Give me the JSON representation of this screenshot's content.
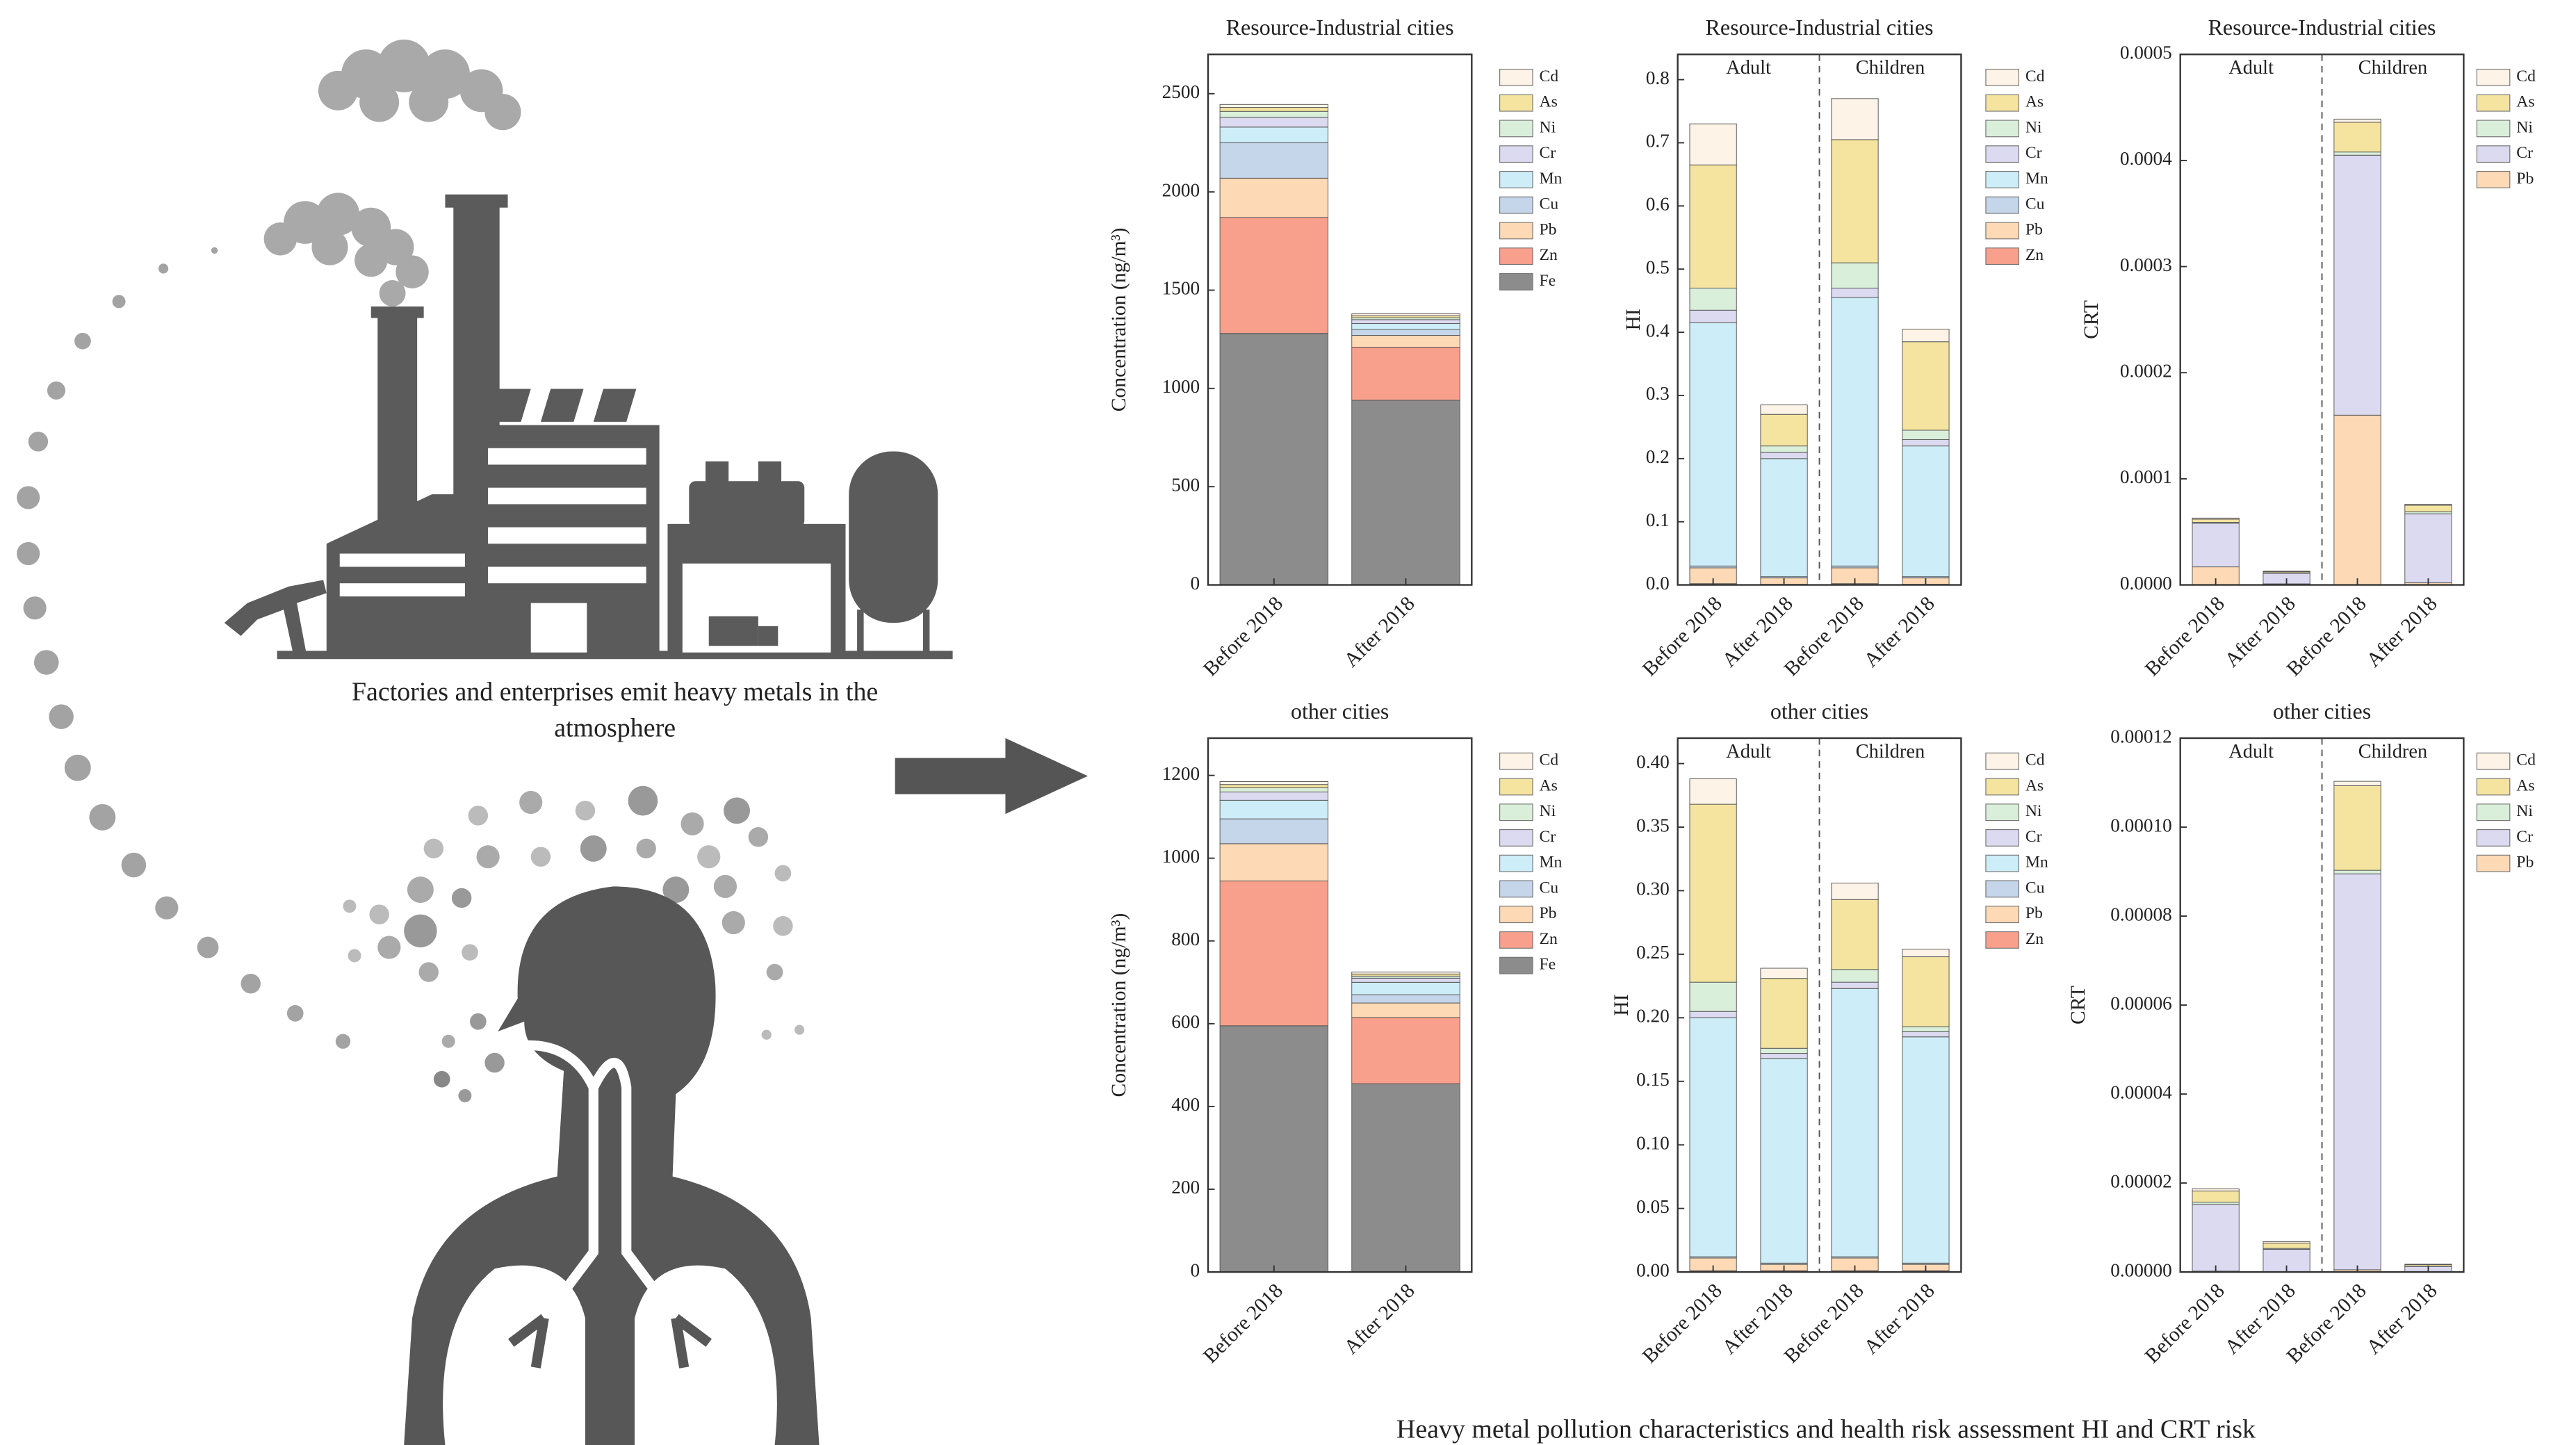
{
  "illustration_caption": "Factories and enterprises emit heavy metals in the atmosphere",
  "caption": "Heavy metal pollution characteristics and health risk assessment HI and CRT risk",
  "chart_data": [
    {
      "type": "bar",
      "stacked": true,
      "title": "Resource-Industrial cities",
      "ylabel": "Concentration (ng/m³)",
      "categories": [
        "Before 2018",
        "After 2018"
      ],
      "ylim": [
        0,
        2700
      ],
      "yticks": [
        0,
        500,
        1000,
        1500,
        2000,
        2500
      ],
      "grid": false,
      "legend": "right",
      "series": [
        {
          "name": "Fe",
          "color": "#8c8c8c",
          "values": [
            1280,
            940
          ]
        },
        {
          "name": "Zn",
          "color": "#f9a08c",
          "values": [
            590,
            270
          ]
        },
        {
          "name": "Pb",
          "color": "#fdd9b5",
          "values": [
            200,
            60
          ]
        },
        {
          "name": "Cu",
          "color": "#c5d5ea",
          "values": [
            180,
            30
          ]
        },
        {
          "name": "Mn",
          "color": "#cdeef8",
          "values": [
            80,
            30
          ]
        },
        {
          "name": "Cr",
          "color": "#dcdaf0",
          "values": [
            50,
            20
          ]
        },
        {
          "name": "Ni",
          "color": "#d9efd9",
          "values": [
            30,
            10
          ]
        },
        {
          "name": "As",
          "color": "#f5e4a0",
          "values": [
            20,
            10
          ]
        },
        {
          "name": "Cd",
          "color": "#fdf3e7",
          "values": [
            15,
            10
          ]
        }
      ]
    },
    {
      "type": "bar",
      "stacked": true,
      "title": "Resource-Industrial cities",
      "ylabel": "HI",
      "group_labels": [
        "Adult",
        "Children"
      ],
      "categories": [
        "Before 2018",
        "After 2018",
        "Before 2018",
        "After 2018"
      ],
      "ylim": [
        0,
        0.84
      ],
      "yticks": [
        {
          "value": 0,
          "label": "0.0"
        },
        0.1,
        0.2,
        0.3,
        0.4,
        0.5,
        0.6,
        0.7,
        0.8
      ],
      "grid": false,
      "legend": "right",
      "series": [
        {
          "name": "Zn",
          "color": "#f9a08c",
          "values": [
            0.002,
            0.001,
            0.002,
            0.001
          ]
        },
        {
          "name": "Pb",
          "color": "#fdd9b5",
          "values": [
            0.025,
            0.01,
            0.025,
            0.01
          ]
        },
        {
          "name": "Cu",
          "color": "#c5d5ea",
          "values": [
            0.003,
            0.002,
            0.003,
            0.002
          ]
        },
        {
          "name": "Mn",
          "color": "#cdeef8",
          "values": [
            0.385,
            0.187,
            0.425,
            0.207
          ]
        },
        {
          "name": "Cr",
          "color": "#dcdaf0",
          "values": [
            0.02,
            0.01,
            0.015,
            0.01
          ]
        },
        {
          "name": "Ni",
          "color": "#d9efd9",
          "values": [
            0.035,
            0.01,
            0.04,
            0.015
          ]
        },
        {
          "name": "As",
          "color": "#f5e4a0",
          "values": [
            0.195,
            0.05,
            0.195,
            0.14
          ]
        },
        {
          "name": "Cd",
          "color": "#fdf3e7",
          "values": [
            0.065,
            0.015,
            0.065,
            0.02
          ]
        }
      ]
    },
    {
      "type": "bar",
      "stacked": true,
      "title": "Resource-Industrial cities",
      "ylabel": "CRT",
      "group_labels": [
        "Adult",
        "Children"
      ],
      "categories": [
        "Before 2018",
        "After 2018",
        "Before 2018",
        "After 2018"
      ],
      "ylim": [
        0,
        0.0005
      ],
      "yticks": [
        {
          "value": 0,
          "label": "0.0000"
        },
        0.0001,
        0.0002,
        0.0003,
        0.0004,
        0.0005
      ],
      "grid": false,
      "legend": "right",
      "series": [
        {
          "name": "Pb",
          "color": "#fdd9b5",
          "values": [
            1.7e-05,
            1e-06,
            0.00016,
            2e-06
          ]
        },
        {
          "name": "Cr",
          "color": "#dcdaf0",
          "values": [
            4.1e-05,
            1e-05,
            0.000245,
            6.5e-05
          ]
        },
        {
          "name": "Ni",
          "color": "#d9efd9",
          "values": [
            1e-06,
            5e-07,
            3e-06,
            2e-06
          ]
        },
        {
          "name": "As",
          "color": "#f5e4a0",
          "values": [
            3e-06,
            1e-06,
            2.8e-05,
            6e-06
          ]
        },
        {
          "name": "Cd",
          "color": "#fdf3e7",
          "values": [
            1e-06,
            5e-07,
            3e-06,
            1e-06
          ]
        }
      ]
    },
    {
      "type": "bar",
      "stacked": true,
      "title": "other cities",
      "ylabel": "Concentration (ng/m³)",
      "categories": [
        "Before 2018",
        "After 2018"
      ],
      "ylim": [
        0,
        1290
      ],
      "yticks": [
        0,
        200,
        400,
        600,
        800,
        1000,
        1200
      ],
      "grid": false,
      "legend": "right",
      "series": [
        {
          "name": "Fe",
          "color": "#8c8c8c",
          "values": [
            595,
            455
          ]
        },
        {
          "name": "Zn",
          "color": "#f9a08c",
          "values": [
            350,
            160
          ]
        },
        {
          "name": "Pb",
          "color": "#fdd9b5",
          "values": [
            90,
            35
          ]
        },
        {
          "name": "Cu",
          "color": "#c5d5ea",
          "values": [
            60,
            20
          ]
        },
        {
          "name": "Mn",
          "color": "#cdeef8",
          "values": [
            45,
            30
          ]
        },
        {
          "name": "Cr",
          "color": "#dcdaf0",
          "values": [
            20,
            10
          ]
        },
        {
          "name": "Ni",
          "color": "#d9efd9",
          "values": [
            10,
            5
          ]
        },
        {
          "name": "As",
          "color": "#f5e4a0",
          "values": [
            8,
            5
          ]
        },
        {
          "name": "Cd",
          "color": "#fdf3e7",
          "values": [
            7,
            5
          ]
        }
      ]
    },
    {
      "type": "bar",
      "stacked": true,
      "title": "other cities",
      "ylabel": "HI",
      "group_labels": [
        "Adult",
        "Children"
      ],
      "categories": [
        "Before 2018",
        "After 2018",
        "Before 2018",
        "After 2018"
      ],
      "ylim": [
        0,
        0.42
      ],
      "yticks": [
        {
          "value": 0,
          "label": "0.00"
        },
        0.05,
        {
          "value": 0.1,
          "label": "0.10"
        },
        0.15,
        {
          "value": 0.2,
          "label": "0.20"
        },
        0.25,
        {
          "value": 0.3,
          "label": "0.30"
        },
        0.35,
        {
          "value": 0.4,
          "label": "0.40"
        }
      ],
      "grid": false,
      "legend": "right",
      "series": [
        {
          "name": "Zn",
          "color": "#f9a08c",
          "values": [
            0.001,
            0.001,
            0.001,
            0.001
          ]
        },
        {
          "name": "Pb",
          "color": "#fdd9b5",
          "values": [
            0.01,
            0.005,
            0.01,
            0.005
          ]
        },
        {
          "name": "Cu",
          "color": "#c5d5ea",
          "values": [
            0.001,
            0.001,
            0.001,
            0.001
          ]
        },
        {
          "name": "Mn",
          "color": "#cdeef8",
          "values": [
            0.188,
            0.161,
            0.211,
            0.178
          ]
        },
        {
          "name": "Cr",
          "color": "#dcdaf0",
          "values": [
            0.005,
            0.004,
            0.005,
            0.004
          ]
        },
        {
          "name": "Ni",
          "color": "#d9efd9",
          "values": [
            0.023,
            0.004,
            0.01,
            0.004
          ]
        },
        {
          "name": "As",
          "color": "#f5e4a0",
          "values": [
            0.14,
            0.055,
            0.055,
            0.055
          ]
        },
        {
          "name": "Cd",
          "color": "#fdf3e7",
          "values": [
            0.02,
            0.008,
            0.013,
            0.006
          ]
        }
      ]
    },
    {
      "type": "bar",
      "stacked": true,
      "title": "other cities",
      "ylabel": "CRT",
      "group_labels": [
        "Adult",
        "Children"
      ],
      "categories": [
        "Before 2018",
        "After 2018",
        "Before 2018",
        "After 2018"
      ],
      "ylim": [
        0,
        0.00012
      ],
      "yticks": [
        {
          "value": 0,
          "label": "0.00000"
        },
        2e-05,
        4e-05,
        6e-05,
        8e-05,
        {
          "value": 0.0001,
          "label": "0.00010"
        },
        0.00012
      ],
      "grid": false,
      "legend": "right",
      "series": [
        {
          "name": "Pb",
          "color": "#fdd9b5",
          "values": [
            2e-07,
            1e-07,
            5e-07,
            5e-08
          ]
        },
        {
          "name": "Cr",
          "color": "#dcdaf0",
          "values": [
            1.5e-05,
            5e-06,
            8.9e-05,
            1.2e-06
          ]
        },
        {
          "name": "Ni",
          "color": "#d9efd9",
          "values": [
            5e-07,
            2e-07,
            8e-07,
            1e-07
          ]
        },
        {
          "name": "As",
          "color": "#f5e4a0",
          "values": [
            2.5e-06,
            1.2e-06,
            1.9e-05,
            3e-07
          ]
        },
        {
          "name": "Cd",
          "color": "#fdf3e7",
          "values": [
            5e-07,
            3e-07,
            1e-06,
            1e-07
          ]
        }
      ]
    }
  ]
}
